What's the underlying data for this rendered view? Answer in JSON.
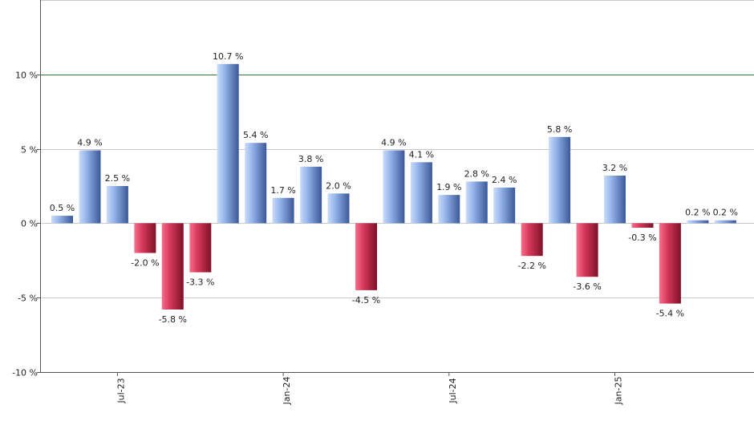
{
  "chart_data": {
    "type": "bar",
    "title": "",
    "xlabel": "",
    "ylabel": "",
    "ylim": [
      -10,
      15
    ],
    "y_ticks": [
      10,
      5,
      0,
      -5,
      -10
    ],
    "y_tick_labels": [
      "10 %",
      "5 %",
      "0 %",
      "-5 %",
      "-10 %"
    ],
    "reference_line": 10,
    "grid": true,
    "x_tick_labels": [
      {
        "label": "Jul-23",
        "index": 2
      },
      {
        "label": "Jan-24",
        "index": 8
      },
      {
        "label": "Jul-24",
        "index": 14
      },
      {
        "label": "Jan-25",
        "index": 20
      }
    ],
    "values": [
      0.5,
      4.9,
      2.5,
      -2.0,
      -5.8,
      -3.3,
      10.7,
      5.4,
      1.7,
      3.8,
      2.0,
      -4.5,
      4.9,
      4.1,
      1.9,
      2.8,
      2.4,
      -2.2,
      5.8,
      -3.6,
      3.2,
      -0.3,
      -5.4,
      0.2,
      0.2
    ],
    "labels": [
      "0.5 %",
      "4.9 %",
      "2.5 %",
      "-2.0 %",
      "-5.8 %",
      "-3.3 %",
      "10.7 %",
      "5.4 %",
      "1.7 %",
      "3.8 %",
      "2.0 %",
      "-4.5 %",
      "4.9 %",
      "4.1 %",
      "1.9 %",
      "2.8 %",
      "2.4 %",
      "-2.2 %",
      "5.8 %",
      "-3.6 %",
      "3.2 %",
      "-0.3 %",
      "-5.4 %",
      "0.2 %",
      "0.2 %"
    ],
    "colors": {
      "positive_light": "#a8c4f2",
      "positive_dark": "#3d5a9c",
      "negative_light": "#ef5a78",
      "negative_dark": "#8c1530",
      "grid": "#c8c8c8",
      "axis": "#555555",
      "reference": "#2e7d32"
    }
  }
}
